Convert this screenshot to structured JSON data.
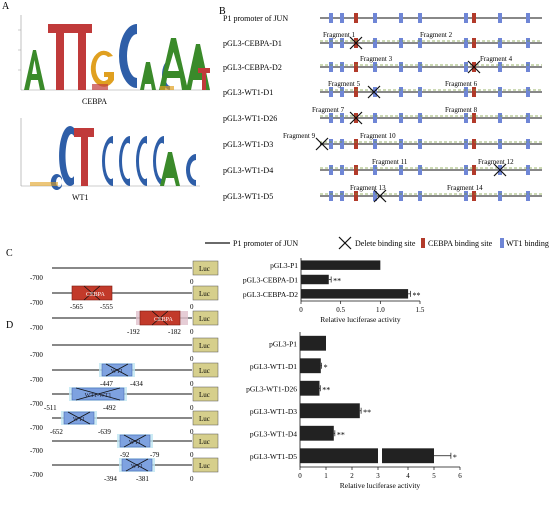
{
  "panel_labels": {
    "a": "A",
    "b": "B",
    "c": "C",
    "d": "D"
  },
  "logos": {
    "cebpa": {
      "name": "CEBPA",
      "motif_letters": "ATTGCACAAT"
    },
    "wt1": {
      "name": "WT1",
      "motif_letters": "CTCCCCCAC"
    }
  },
  "panel_b": {
    "constructs": [
      {
        "name": "P1 promoter of JUN",
        "fragments": []
      },
      {
        "name": "pGL3-CEBPA-D1",
        "fragments": [
          "Fragment 1",
          "Fragment 2"
        ]
      },
      {
        "name": "pGL3-CEBPA-D2",
        "fragments": [
          "Fragment 3",
          "Fragment 4"
        ]
      },
      {
        "name": "pGL3-WT1-D1",
        "fragments": [
          "Fragment 5",
          "Fragment 6"
        ]
      },
      {
        "name": "pGL3-WT1-D26",
        "fragments": [
          "Fragment 7",
          "Fragment 8"
        ]
      },
      {
        "name": "pGL3-WT1-D3",
        "fragments": [
          "Fragment 9",
          "Fragment 10"
        ]
      },
      {
        "name": "pGL3-WT1-D4",
        "fragments": [
          "Fragment 11",
          "Fragment 12"
        ]
      },
      {
        "name": "pGL3-WT1-D5",
        "fragments": [
          "Fragment 13",
          "Fragment 14"
        ]
      }
    ],
    "legend": {
      "line": "P1 promoter of JUN",
      "cross": "Delete binding site",
      "cebpa": "CEBPA binding site",
      "wt1": "WT1 binding site"
    },
    "colors": {
      "cebpa": "#b23a2a",
      "wt1": "#6f86d6",
      "fragment": "#7a9a3a"
    }
  },
  "panel_c": {
    "start_label": "-700",
    "zero_label": "0",
    "luc_label": "Luc",
    "constructs": [
      {
        "box": "",
        "left": "",
        "right": ""
      },
      {
        "box": "CEBPA",
        "left": "-565",
        "right": "-555"
      },
      {
        "box": "CEBPA",
        "left": "-192",
        "right": "-182"
      }
    ]
  },
  "panel_d": {
    "start_label": "-700",
    "zero_label": "0",
    "luc_label": "Luc",
    "constructs": [
      {
        "box": "",
        "left": "",
        "right": ""
      },
      {
        "box": "WT1",
        "left": "-447",
        "right": "-434"
      },
      {
        "box": "WT1-WT1",
        "left": "-511",
        "right": "-492"
      },
      {
        "box": "WT1",
        "left": "-652",
        "right": "-639"
      },
      {
        "box": "WT1",
        "left": "-92",
        "right": "-79"
      },
      {
        "box": "WT1",
        "left": "-394",
        "right": "-381"
      }
    ]
  },
  "chart_data": [
    {
      "type": "bar",
      "orientation": "horizontal",
      "categories": [
        "pGL3-P1",
        "pGL3-CEBPA-D1",
        "pGL3-CEBPA-D2"
      ],
      "values": [
        1.0,
        0.35,
        1.35
      ],
      "errors": [
        0.0,
        0.03,
        0.03
      ],
      "significance": [
        "",
        "**",
        "**"
      ],
      "xlabel": "Relative luciferase activity",
      "xlim": [
        0,
        1.5
      ],
      "xticks": [
        0,
        0.5,
        1.0,
        1.5
      ],
      "xtick_labels": [
        "0",
        "0.5",
        "1.0",
        "1.5"
      ],
      "bar_color": "#222222"
    },
    {
      "type": "bar",
      "orientation": "horizontal",
      "categories": [
        "pGL3-P1",
        "pGL3-WT1-D1",
        "pGL3-WT1-D26",
        "pGL3-WT1-D3",
        "pGL3-WT1-D4",
        "pGL3-WT1-D5"
      ],
      "values": [
        1.0,
        0.8,
        0.75,
        2.3,
        1.3,
        5.0
      ],
      "errors": [
        0.0,
        0.03,
        0.03,
        0.05,
        0.04,
        0.65
      ],
      "significance": [
        "",
        "*",
        "**",
        "**",
        "**",
        "*"
      ],
      "xlabel": "Relative luciferase activity",
      "xlim": [
        0,
        6
      ],
      "xticks": [
        0,
        1,
        2,
        3,
        4,
        5,
        6
      ],
      "xtick_labels": [
        "0",
        "1",
        "2",
        "3",
        "4",
        "5",
        "6"
      ],
      "axis_break_after": 3,
      "bar_color": "#222222"
    }
  ]
}
